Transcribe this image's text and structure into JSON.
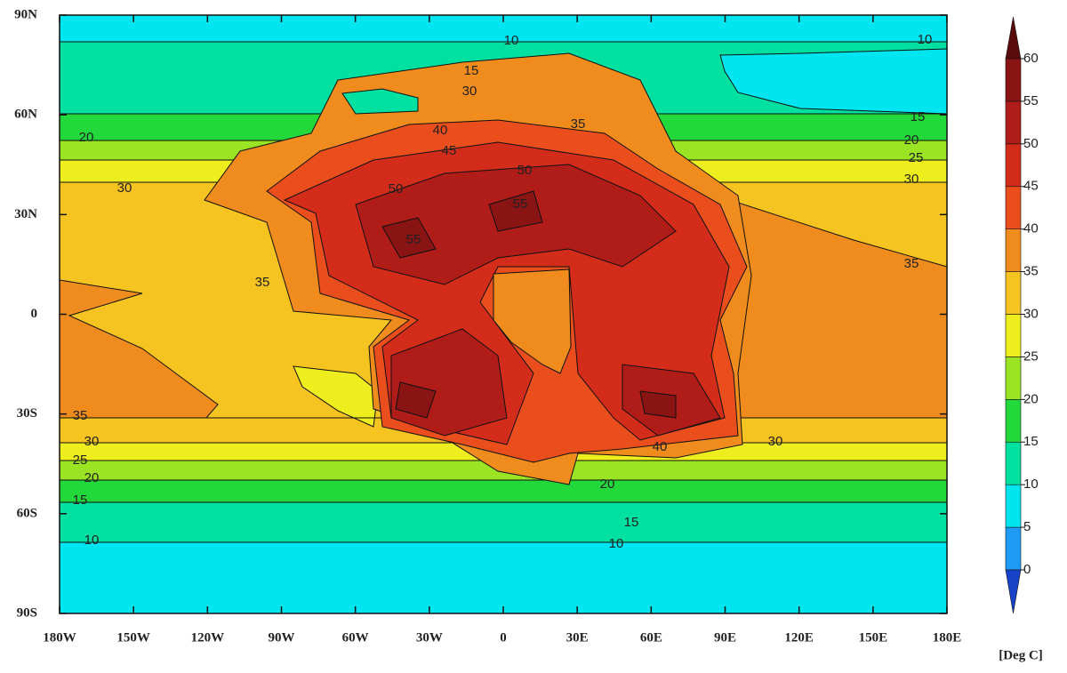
{
  "map": {
    "lat_labels": [
      "90N",
      "60N",
      "30N",
      "0",
      "30S",
      "60S",
      "90S"
    ],
    "lon_labels": [
      "180W",
      "150W",
      "120W",
      "90W",
      "60W",
      "30W",
      "0",
      "30E",
      "60E",
      "90E",
      "120E",
      "150E",
      "180E"
    ],
    "contour_labels": [
      "10",
      "10",
      "15",
      "30",
      "15",
      "20",
      "25",
      "30",
      "20",
      "30",
      "35",
      "35",
      "40",
      "45",
      "50",
      "50",
      "55",
      "55",
      "35",
      "30",
      "25",
      "20",
      "15",
      "10",
      "30",
      "40",
      "20",
      "15",
      "10",
      "35"
    ]
  },
  "colorbar": {
    "levels": [
      0,
      5,
      10,
      15,
      20,
      25,
      30,
      35,
      40,
      45,
      50,
      55,
      60
    ],
    "colors": [
      "#1e9cf5",
      "#00e6f0",
      "#00e0a0",
      "#22d83a",
      "#9ae424",
      "#eeee1e",
      "#f6c420",
      "#f08c1e",
      "#ea4e1c",
      "#d42c1a",
      "#b01c18",
      "#8a1414"
    ],
    "under_color": "#1842c8",
    "over_color": "#5a0c0c",
    "unit": "[Deg C]"
  }
}
